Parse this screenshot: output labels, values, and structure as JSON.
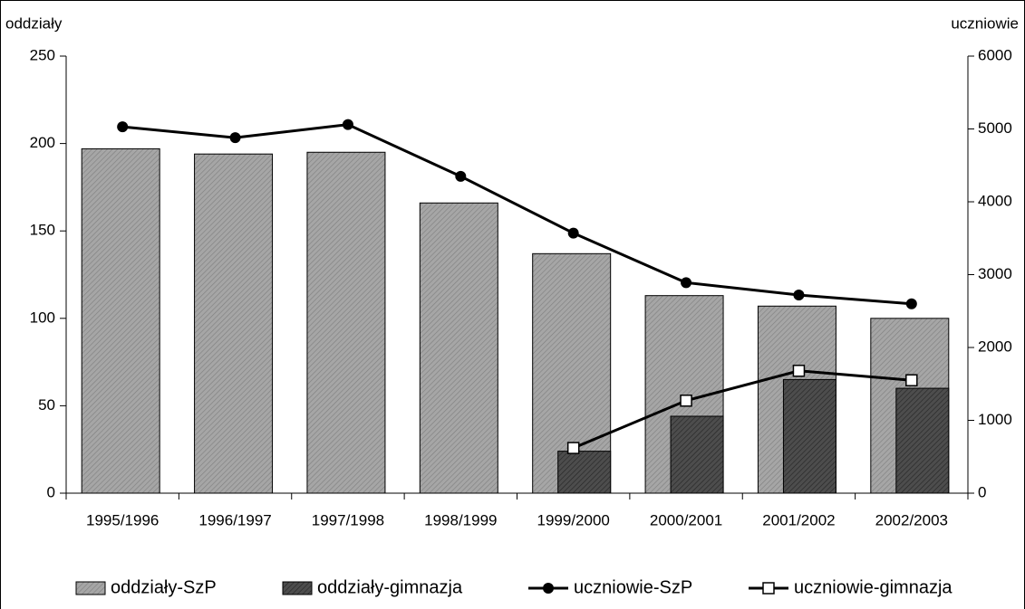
{
  "chart_data": {
    "type": "bar",
    "y_label": "oddziały",
    "y2_label": "uczniowie",
    "categories": [
      "1995/1996",
      "1996/1997",
      "1997/1998",
      "1998/1999",
      "1999/2000",
      "2000/2001",
      "2001/2002",
      "2002/2003"
    ],
    "series": [
      {
        "name": "oddziały-SzP",
        "type": "bar",
        "color": "#a6a6a6",
        "values": [
          197,
          194,
          195,
          166,
          137,
          113,
          107,
          100
        ]
      },
      {
        "name": "oddziały-gimnazja",
        "type": "bar",
        "color": "#4d4d4d",
        "values": [
          null,
          null,
          null,
          null,
          24,
          44,
          65,
          60
        ]
      },
      {
        "name": "uczniowie-SzP",
        "type": "line",
        "axis": "y2",
        "marker": "circle",
        "color": "#000000",
        "values": [
          5030,
          4880,
          5060,
          4350,
          3570,
          2890,
          2720,
          2600
        ]
      },
      {
        "name": "uczniowie-gimnazja",
        "type": "line",
        "axis": "y2",
        "marker": "square",
        "color": "#000000",
        "values": [
          null,
          null,
          null,
          null,
          620,
          1270,
          1680,
          1550
        ]
      }
    ],
    "ylim": [
      0,
      250
    ],
    "yticks": [
      0,
      50,
      100,
      150,
      200,
      250
    ],
    "y2lim": [
      0,
      6000
    ],
    "y2ticks": [
      0,
      1000,
      2000,
      3000,
      4000,
      5000,
      6000
    ],
    "legend": "bottom"
  }
}
